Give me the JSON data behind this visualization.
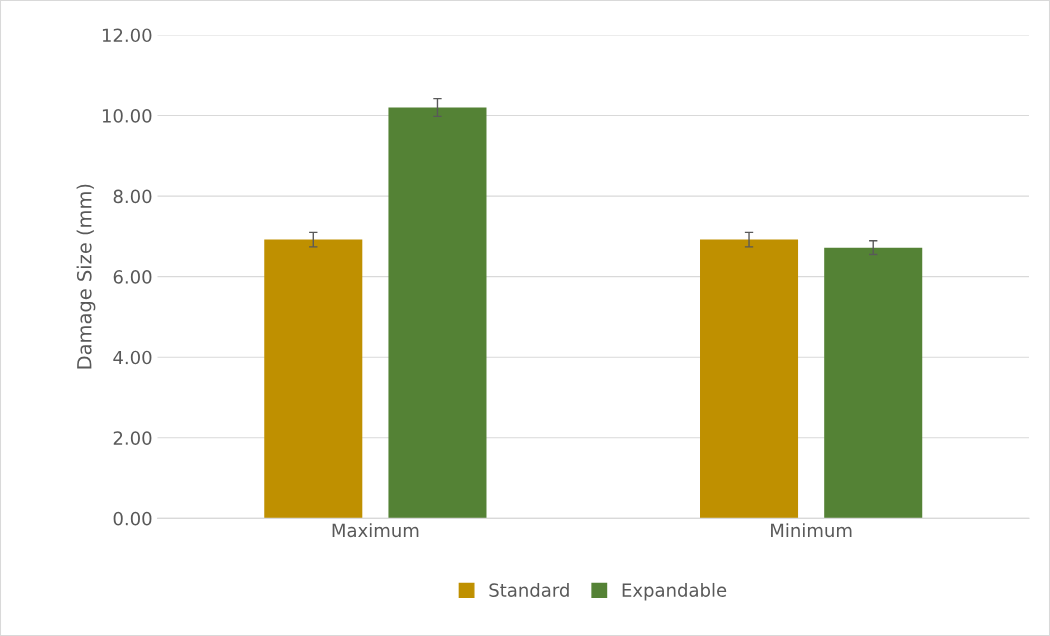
{
  "chart_data": {
    "type": "bar",
    "ylabel": "Damage Size (mm)",
    "categories": [
      "Maximum",
      "Minimum"
    ],
    "series": [
      {
        "name": "Standard",
        "color": "#bf9000",
        "values": [
          6.92,
          6.92
        ],
        "errors": [
          0.18,
          0.18
        ]
      },
      {
        "name": "Expandable",
        "color": "#548235",
        "values": [
          10.2,
          6.72
        ],
        "errors": [
          0.22,
          0.17
        ]
      }
    ],
    "ylim": [
      0,
      12
    ],
    "yticks": [
      {
        "value": 0,
        "label": "0.00"
      },
      {
        "value": 2,
        "label": "2.00"
      },
      {
        "value": 4,
        "label": "4.00"
      },
      {
        "value": 6,
        "label": "6.00"
      },
      {
        "value": 8,
        "label": "8.00"
      },
      {
        "value": 10,
        "label": "10.00"
      },
      {
        "value": 12,
        "label": "12.00"
      }
    ],
    "grid": "y",
    "legend": "bottom"
  }
}
